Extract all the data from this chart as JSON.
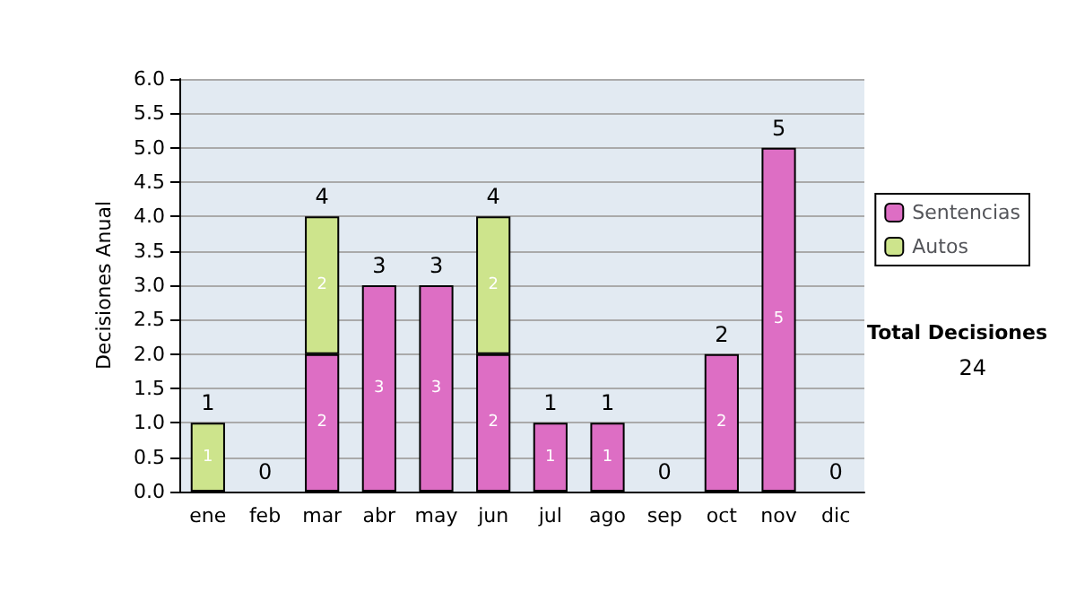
{
  "chart_data": {
    "type": "bar",
    "stacked": true,
    "ylabel": "Decisiones Anual",
    "categories": [
      "ene",
      "feb",
      "mar",
      "abr",
      "may",
      "jun",
      "jul",
      "ago",
      "sep",
      "oct",
      "nov",
      "dic"
    ],
    "series": [
      {
        "name": "Sentencias",
        "color": "#dd6ec4",
        "values": [
          0,
          0,
          2,
          3,
          3,
          2,
          1,
          1,
          0,
          2,
          5,
          0
        ],
        "value_labels": [
          null,
          null,
          "2",
          "3",
          "3",
          "2",
          "1",
          "1",
          null,
          "2",
          "5",
          null
        ]
      },
      {
        "name": "Autos",
        "color": "#cde48c",
        "values": [
          1,
          0,
          2,
          0,
          0,
          2,
          0,
          0,
          0,
          0,
          0,
          0
        ],
        "value_labels": [
          "1",
          null,
          "2",
          null,
          null,
          "2",
          null,
          null,
          null,
          null,
          null,
          null
        ]
      }
    ],
    "totals": [
      "1",
      "0",
      "4",
      "3",
      "3",
      "4",
      "1",
      "1",
      "0",
      "2",
      "5",
      "0"
    ],
    "ylim": [
      0,
      6
    ],
    "yticks": [
      {
        "value": 0,
        "label": "0.0"
      },
      {
        "value": 0.5,
        "label": "0.5"
      },
      {
        "value": 1,
        "label": "1.0"
      },
      {
        "value": 1.5,
        "label": "1.5"
      },
      {
        "value": 2,
        "label": "2.0"
      },
      {
        "value": 2.5,
        "label": "2.5"
      },
      {
        "value": 3,
        "label": "3.0"
      },
      {
        "value": 3.5,
        "label": "3.5"
      },
      {
        "value": 4,
        "label": "4.0"
      },
      {
        "value": 4.5,
        "label": "4.5"
      },
      {
        "value": 5,
        "label": "5.0"
      },
      {
        "value": 5.5,
        "label": "5.5"
      },
      {
        "value": 6,
        "label": "6.0"
      }
    ],
    "grid": "y",
    "legend": "right",
    "annotations": [
      "Total Decisiones",
      "24"
    ]
  }
}
